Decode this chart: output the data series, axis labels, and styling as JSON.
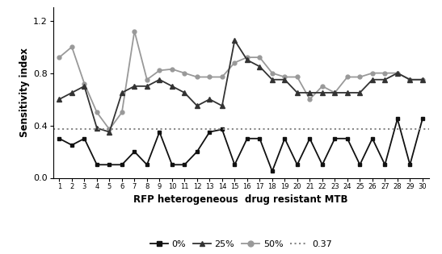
{
  "x": [
    1,
    2,
    3,
    4,
    5,
    6,
    7,
    8,
    9,
    10,
    11,
    12,
    13,
    14,
    15,
    16,
    17,
    18,
    19,
    20,
    21,
    22,
    23,
    24,
    25,
    26,
    27,
    28,
    29,
    30
  ],
  "y_0pct": [
    0.3,
    0.25,
    0.3,
    0.1,
    0.1,
    0.1,
    0.2,
    0.1,
    0.35,
    0.1,
    0.1,
    0.2,
    0.35,
    0.37,
    0.1,
    0.3,
    0.3,
    0.05,
    0.3,
    0.1,
    0.3,
    0.1,
    0.3,
    0.3,
    0.1,
    0.3,
    0.1,
    0.45,
    0.1,
    0.45
  ],
  "y_25pct": [
    0.6,
    0.65,
    0.7,
    0.38,
    0.35,
    0.65,
    0.7,
    0.7,
    0.75,
    0.7,
    0.65,
    0.55,
    0.6,
    0.55,
    1.05,
    0.9,
    0.85,
    0.75,
    0.75,
    0.65,
    0.65,
    0.65,
    0.65,
    0.65,
    0.65,
    0.75,
    0.75,
    0.8,
    0.75,
    0.75
  ],
  "y_50pct": [
    0.92,
    1.0,
    0.72,
    0.5,
    0.37,
    0.5,
    1.12,
    0.75,
    0.82,
    0.83,
    0.8,
    0.77,
    0.77,
    0.77,
    0.88,
    0.92,
    0.92,
    0.8,
    0.77,
    0.77,
    0.6,
    0.7,
    0.65,
    0.77,
    0.77,
    0.8,
    0.8,
    0.8,
    0.75,
    0.75
  ],
  "threshold": 0.37,
  "xlabel": "RFP heterogeneous  drug resistant MTB",
  "ylabel": "Sensitivity index",
  "ylim": [
    0,
    1.3
  ],
  "yticks": [
    0,
    0.4,
    0.8,
    1.2
  ],
  "color_0pct": "#111111",
  "color_25pct": "#333333",
  "color_50pct": "#999999",
  "color_threshold": "#888888",
  "legend_labels": [
    "0%",
    "25%",
    "50%",
    "0.37"
  ],
  "fig_width": 5.47,
  "fig_height": 3.15,
  "dpi": 100
}
